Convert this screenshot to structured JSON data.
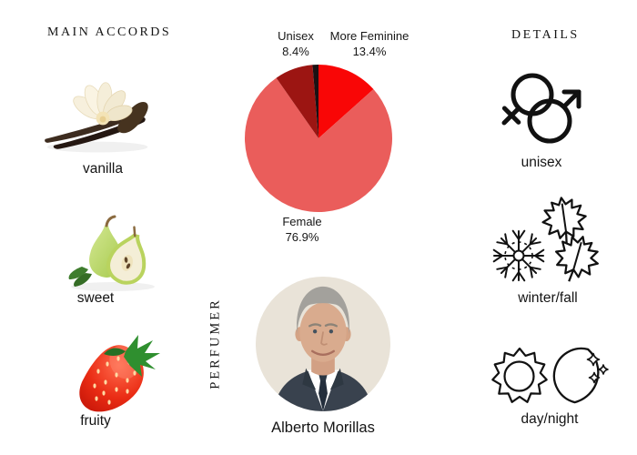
{
  "headers": {
    "main_accords": "MAIN ACCORDS",
    "details": "DETAILS"
  },
  "accords": [
    {
      "label": "vanilla",
      "icon": "vanilla-flower-and-pods-image"
    },
    {
      "label": "sweet",
      "icon": "pear-image"
    },
    {
      "label": "fruity",
      "icon": "strawberry-image"
    }
  ],
  "chart_data": {
    "type": "pie",
    "start_angle": "top",
    "direction": "clockwise",
    "slices": [
      {
        "label": "More Feminine",
        "value": 13.4,
        "color": "#f90606"
      },
      {
        "label": "Female",
        "value": 76.9,
        "color": "#ea5d5b"
      },
      {
        "label": "Unisex",
        "value": 8.4,
        "color": "#9c1512"
      },
      {
        "label": "",
        "value": 1.3,
        "color": "#1c1113"
      }
    ],
    "labels": [
      {
        "name": "Unisex",
        "pct": "8.4%"
      },
      {
        "name": "More Feminine",
        "pct": "13.4%"
      },
      {
        "name": "Female",
        "pct": "76.9%"
      }
    ]
  },
  "perfumer": {
    "section_label": "PERFUMER",
    "name": "Alberto Morillas",
    "photo": "alberto-morillas-portrait"
  },
  "details": [
    {
      "label": "unisex",
      "icons": [
        "female-male-interlocked"
      ]
    },
    {
      "label": "winter/fall",
      "icons": [
        "snowflake",
        "maple-leaves"
      ]
    },
    {
      "label": "day/night",
      "icons": [
        "sun",
        "crescent-moon-stars"
      ]
    }
  ]
}
